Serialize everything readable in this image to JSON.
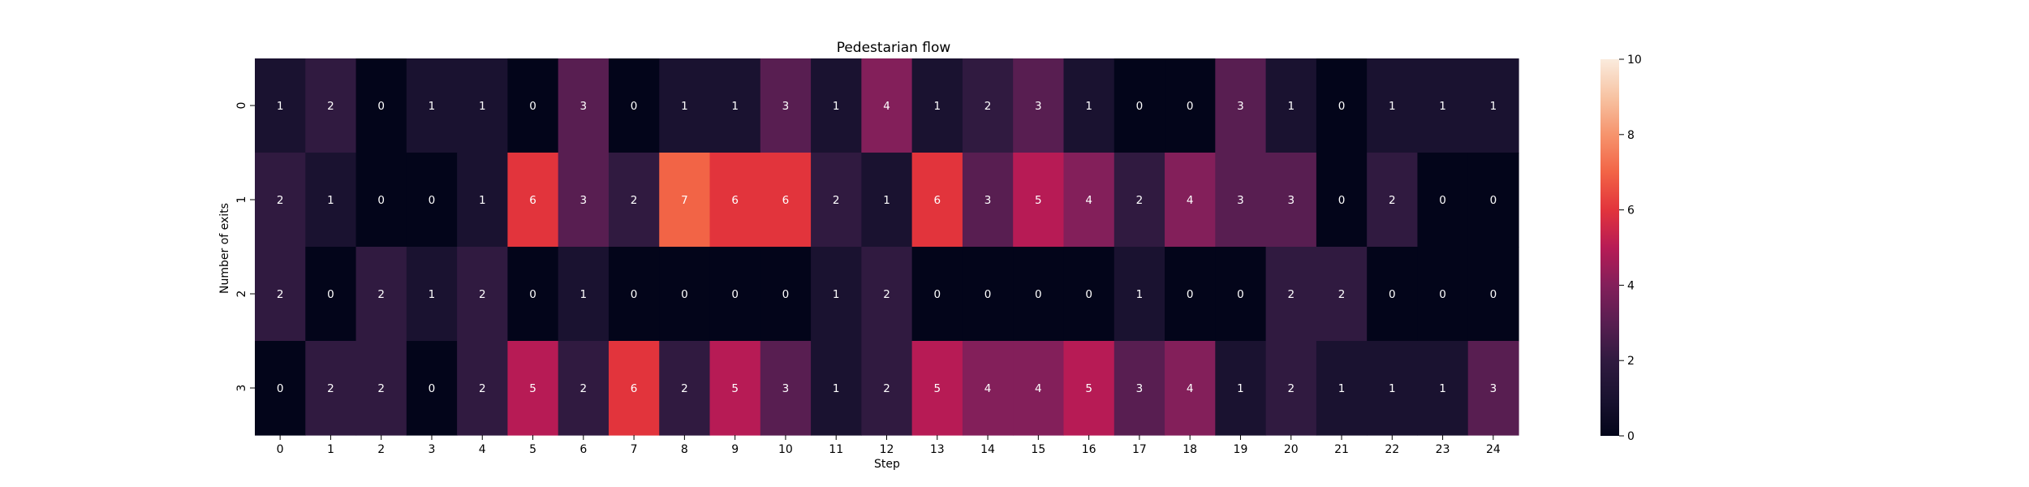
{
  "chart_data": {
    "type": "heatmap",
    "title": "Pedestarian flow",
    "xlabel": "Step",
    "ylabel": "Number of exits",
    "x_categories": [
      "0",
      "1",
      "2",
      "3",
      "4",
      "5",
      "6",
      "7",
      "8",
      "9",
      "10",
      "11",
      "12",
      "13",
      "14",
      "15",
      "16",
      "17",
      "18",
      "19",
      "20",
      "21",
      "22",
      "23",
      "24"
    ],
    "y_categories": [
      "0",
      "1",
      "2",
      "3"
    ],
    "values": [
      [
        1,
        2,
        0,
        1,
        1,
        0,
        3,
        0,
        1,
        1,
        3,
        1,
        4,
        1,
        2,
        3,
        1,
        0,
        0,
        3,
        1,
        0,
        1,
        1,
        1
      ],
      [
        2,
        1,
        0,
        0,
        1,
        6,
        3,
        2,
        7,
        6,
        6,
        2,
        1,
        6,
        3,
        5,
        4,
        2,
        4,
        3,
        3,
        0,
        2,
        0,
        0
      ],
      [
        2,
        0,
        2,
        1,
        2,
        0,
        1,
        0,
        0,
        0,
        0,
        1,
        2,
        0,
        0,
        0,
        0,
        1,
        0,
        0,
        2,
        2,
        0,
        0,
        0
      ],
      [
        0,
        2,
        2,
        0,
        2,
        5,
        2,
        6,
        2,
        5,
        3,
        1,
        2,
        5,
        4,
        4,
        5,
        3,
        4,
        1,
        2,
        1,
        1,
        1,
        3
      ]
    ],
    "colorbar": {
      "vmin": 0,
      "vmax": 10,
      "ticks": [
        0,
        2,
        4,
        6,
        8,
        10
      ],
      "colormap": "rocket"
    },
    "annotations": true
  }
}
